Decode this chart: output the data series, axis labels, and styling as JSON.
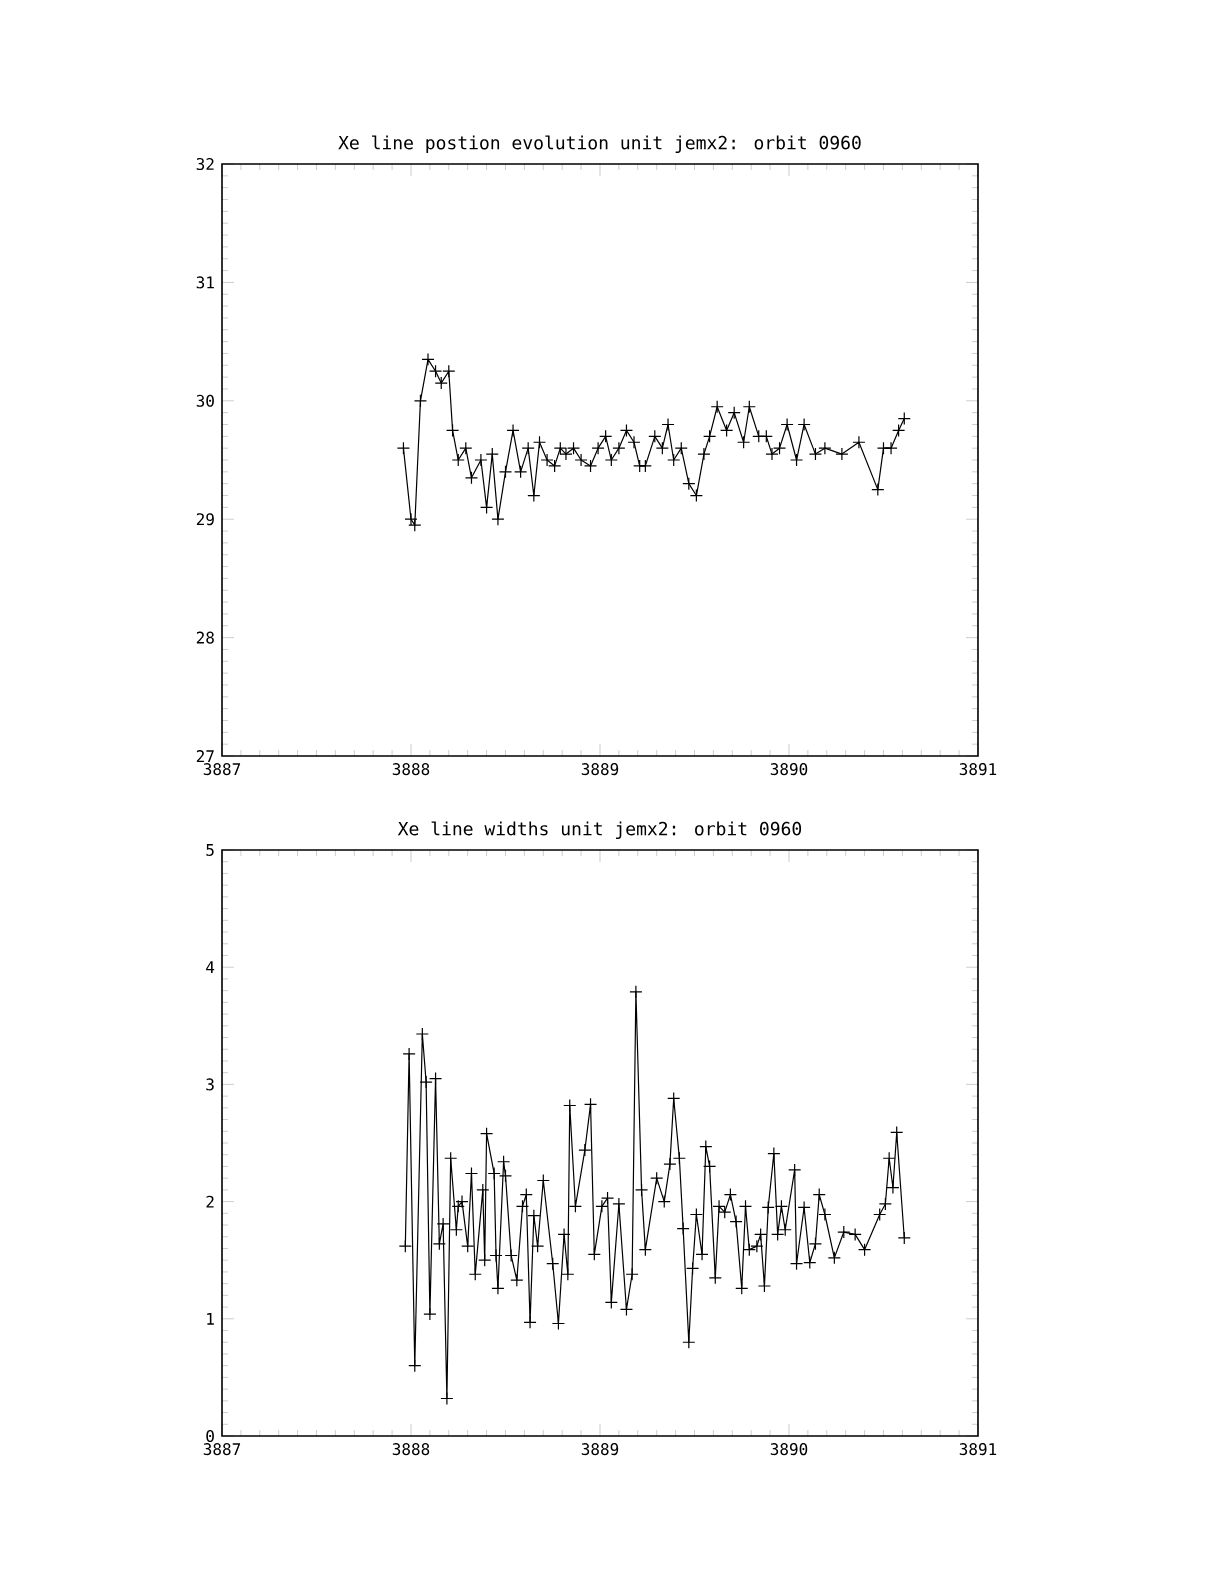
{
  "chart_data": [
    {
      "type": "line",
      "title": "Xe line postion evolution unit jemx2: orbit 0960",
      "marker": "cross",
      "line_style": "solid",
      "x": [
        3887.96,
        3888.0,
        3888.02,
        3888.05,
        3888.09,
        3888.13,
        3888.16,
        3888.2,
        3888.22,
        3888.25,
        3888.29,
        3888.32,
        3888.37,
        3888.4,
        3888.43,
        3888.46,
        3888.5,
        3888.54,
        3888.58,
        3888.62,
        3888.65,
        3888.68,
        3888.72,
        3888.76,
        3888.79,
        3888.82,
        3888.86,
        3888.9,
        3888.95,
        3888.99,
        3889.03,
        3889.06,
        3889.1,
        3889.14,
        3889.18,
        3889.21,
        3889.24,
        3889.29,
        3889.33,
        3889.36,
        3889.39,
        3889.43,
        3889.47,
        3889.51,
        3889.55,
        3889.58,
        3889.62,
        3889.67,
        3889.71,
        3889.76,
        3889.79,
        3889.84,
        3889.88,
        3889.91,
        3889.95,
        3889.99,
        3890.04,
        3890.08,
        3890.14,
        3890.19,
        3890.28,
        3890.37,
        3890.47,
        3890.5,
        3890.54,
        3890.58,
        3890.61
      ],
      "series": [
        {
          "color": "#000000",
          "values": [
            29.6,
            29.0,
            28.95,
            30.0,
            30.35,
            30.25,
            30.15,
            30.25,
            29.75,
            29.5,
            29.6,
            29.35,
            29.5,
            29.1,
            29.55,
            29.0,
            29.4,
            29.75,
            29.4,
            29.6,
            29.2,
            29.65,
            29.5,
            29.45,
            29.6,
            29.55,
            29.6,
            29.5,
            29.45,
            29.6,
            29.7,
            29.5,
            29.6,
            29.75,
            29.65,
            29.45,
            29.45,
            29.7,
            29.6,
            29.8,
            29.5,
            29.6,
            29.3,
            29.2,
            29.55,
            29.7,
            29.95,
            29.75,
            29.9,
            29.65,
            29.95,
            29.7,
            29.7,
            29.55,
            29.6,
            29.8,
            29.5,
            29.8,
            29.55,
            29.6,
            29.55,
            29.65,
            29.25,
            29.6,
            29.6,
            29.75,
            29.85
          ]
        }
      ],
      "xlim": [
        3887,
        3891
      ],
      "ylim": [
        27,
        32
      ],
      "xticks": [
        3887,
        3888,
        3889,
        3890,
        3891
      ],
      "yticks": [
        27,
        28,
        29,
        30,
        31,
        32
      ]
    },
    {
      "type": "line",
      "title": "Xe line widths unit jemx2: orbit 0960",
      "marker": "cross",
      "line_style": "solid",
      "x": [
        3887.97,
        3887.99,
        3888.02,
        3888.06,
        3888.08,
        3888.1,
        3888.13,
        3888.15,
        3888.17,
        3888.19,
        3888.21,
        3888.24,
        3888.25,
        3888.27,
        3888.3,
        3888.32,
        3888.34,
        3888.38,
        3888.39,
        3888.4,
        3888.44,
        3888.45,
        3888.46,
        3888.49,
        3888.5,
        3888.53,
        3888.56,
        3888.59,
        3888.61,
        3888.63,
        3888.65,
        3888.67,
        3888.7,
        3888.75,
        3888.78,
        3888.81,
        3888.83,
        3888.84,
        3888.87,
        3888.92,
        3888.95,
        3888.97,
        3889.01,
        3889.04,
        3889.06,
        3889.1,
        3889.14,
        3889.17,
        3889.19,
        3889.22,
        3889.24,
        3889.3,
        3889.34,
        3889.37,
        3889.39,
        3889.42,
        3889.44,
        3889.47,
        3889.49,
        3889.51,
        3889.54,
        3889.56,
        3889.58,
        3889.61,
        3889.63,
        3889.66,
        3889.69,
        3889.72,
        3889.75,
        3889.77,
        3889.79,
        3889.83,
        3889.85,
        3889.87,
        3889.89,
        3889.92,
        3889.94,
        3889.96,
        3889.98,
        3890.03,
        3890.04,
        3890.08,
        3890.11,
        3890.14,
        3890.16,
        3890.19,
        3890.24,
        3890.29,
        3890.35,
        3890.4,
        3890.48,
        3890.51,
        3890.53,
        3890.55,
        3890.57,
        3890.61
      ],
      "series": [
        {
          "color": "#000000",
          "values": [
            1.62,
            3.26,
            0.6,
            3.43,
            3.02,
            1.04,
            3.05,
            1.64,
            1.81,
            0.32,
            2.37,
            1.76,
            1.96,
            2.0,
            1.62,
            2.24,
            1.38,
            2.1,
            1.5,
            2.58,
            2.24,
            1.54,
            1.26,
            2.34,
            2.22,
            1.54,
            1.33,
            1.96,
            2.06,
            0.97,
            1.88,
            1.62,
            2.18,
            1.47,
            0.96,
            1.72,
            1.38,
            2.82,
            1.96,
            2.44,
            2.83,
            1.55,
            1.96,
            2.03,
            1.14,
            1.98,
            1.08,
            1.38,
            3.79,
            2.1,
            1.59,
            2.2,
            2.0,
            2.32,
            2.88,
            2.37,
            1.77,
            0.8,
            1.43,
            1.89,
            1.55,
            2.47,
            2.3,
            1.35,
            1.96,
            1.91,
            2.06,
            1.83,
            1.26,
            1.96,
            1.59,
            1.62,
            1.72,
            1.28,
            1.95,
            2.41,
            1.72,
            1.96,
            1.76,
            2.27,
            1.47,
            1.95,
            1.48,
            1.64,
            2.06,
            1.89,
            1.52,
            1.74,
            1.72,
            1.59,
            1.89,
            1.98,
            2.37,
            2.12,
            2.59,
            1.69
          ]
        }
      ],
      "xlim": [
        3887,
        3891
      ],
      "ylim": [
        0,
        5
      ],
      "xticks": [
        3887,
        3888,
        3889,
        3890,
        3891
      ],
      "yticks": [
        0,
        1,
        2,
        3,
        4,
        5
      ]
    }
  ]
}
